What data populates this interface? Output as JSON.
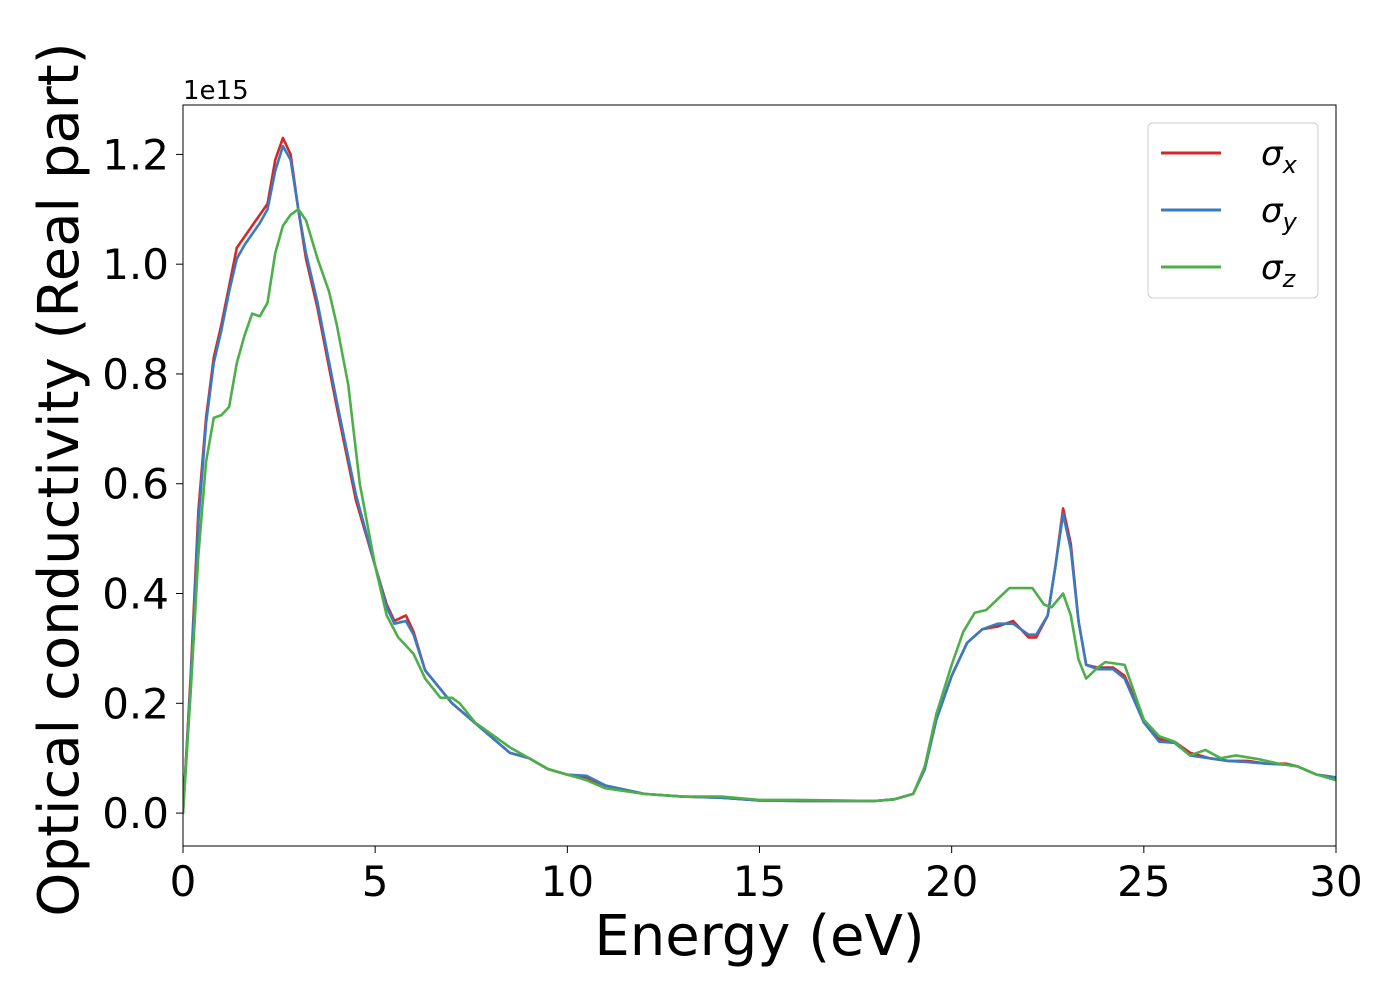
{
  "chart_data": {
    "type": "line",
    "xlabel": "Energy (eV)",
    "ylabel": "Optical conductivity (Real part)",
    "y_offset_label": "1e15",
    "xlim": [
      0,
      30
    ],
    "ylim": [
      -0.06,
      1.29
    ],
    "x_ticks": [
      0,
      5,
      10,
      15,
      20,
      25,
      30
    ],
    "x_tick_labels": [
      "0",
      "5",
      "10",
      "15",
      "20",
      "25",
      "30"
    ],
    "y_ticks": [
      0.0,
      0.2,
      0.4,
      0.6,
      0.8,
      1.0,
      1.2
    ],
    "y_tick_labels": [
      "0.0",
      "0.2",
      "0.4",
      "0.6",
      "0.8",
      "1.0",
      "1.2"
    ],
    "grid": false,
    "legend_position": "top-right",
    "series": [
      {
        "name": "σx",
        "legend_symbol": "σ",
        "legend_subscript": "x",
        "color": "#d62728",
        "points": [
          [
            0,
            0
          ],
          [
            0.2,
            0.25
          ],
          [
            0.4,
            0.55
          ],
          [
            0.6,
            0.72
          ],
          [
            0.8,
            0.83
          ],
          [
            1.0,
            0.89
          ],
          [
            1.2,
            0.96
          ],
          [
            1.4,
            1.03
          ],
          [
            1.6,
            1.05
          ],
          [
            1.8,
            1.07
          ],
          [
            2.0,
            1.09
          ],
          [
            2.2,
            1.11
          ],
          [
            2.4,
            1.19
          ],
          [
            2.6,
            1.23
          ],
          [
            2.8,
            1.2
          ],
          [
            3.0,
            1.1
          ],
          [
            3.2,
            1.01
          ],
          [
            3.5,
            0.92
          ],
          [
            4.0,
            0.74
          ],
          [
            4.5,
            0.57
          ],
          [
            5.0,
            0.45
          ],
          [
            5.3,
            0.38
          ],
          [
            5.5,
            0.35
          ],
          [
            5.8,
            0.36
          ],
          [
            6.0,
            0.33
          ],
          [
            6.3,
            0.26
          ],
          [
            7.0,
            0.2
          ],
          [
            8.0,
            0.14
          ],
          [
            8.5,
            0.11
          ],
          [
            9.0,
            0.1
          ],
          [
            9.5,
            0.08
          ],
          [
            10.0,
            0.07
          ],
          [
            10.5,
            0.065
          ],
          [
            11.0,
            0.05
          ],
          [
            12.0,
            0.035
          ],
          [
            13.0,
            0.03
          ],
          [
            14.0,
            0.028
          ],
          [
            15.0,
            0.023
          ],
          [
            16.0,
            0.022
          ],
          [
            17.0,
            0.022
          ],
          [
            18.0,
            0.022
          ],
          [
            18.5,
            0.025
          ],
          [
            19.0,
            0.035
          ],
          [
            19.3,
            0.08
          ],
          [
            19.6,
            0.17
          ],
          [
            20.0,
            0.25
          ],
          [
            20.4,
            0.31
          ],
          [
            20.8,
            0.335
          ],
          [
            21.2,
            0.34
          ],
          [
            21.6,
            0.35
          ],
          [
            22.0,
            0.32
          ],
          [
            22.2,
            0.32
          ],
          [
            22.5,
            0.36
          ],
          [
            22.7,
            0.45
          ],
          [
            22.9,
            0.555
          ],
          [
            23.1,
            0.49
          ],
          [
            23.3,
            0.35
          ],
          [
            23.5,
            0.27
          ],
          [
            23.8,
            0.265
          ],
          [
            24.2,
            0.265
          ],
          [
            24.5,
            0.25
          ],
          [
            25.0,
            0.17
          ],
          [
            25.4,
            0.135
          ],
          [
            25.8,
            0.13
          ],
          [
            26.2,
            0.11
          ],
          [
            26.7,
            0.1
          ],
          [
            27.2,
            0.095
          ],
          [
            27.7,
            0.095
          ],
          [
            28.2,
            0.09
          ],
          [
            28.7,
            0.09
          ],
          [
            29.0,
            0.085
          ],
          [
            29.5,
            0.07
          ],
          [
            30.0,
            0.065
          ]
        ]
      },
      {
        "name": "σy",
        "legend_symbol": "σ",
        "legend_subscript": "y",
        "color": "#3a7bbf",
        "points": [
          [
            0,
            0
          ],
          [
            0.2,
            0.24
          ],
          [
            0.4,
            0.53
          ],
          [
            0.6,
            0.71
          ],
          [
            0.8,
            0.82
          ],
          [
            1.0,
            0.88
          ],
          [
            1.2,
            0.95
          ],
          [
            1.4,
            1.01
          ],
          [
            1.6,
            1.035
          ],
          [
            1.8,
            1.055
          ],
          [
            2.0,
            1.075
          ],
          [
            2.2,
            1.1
          ],
          [
            2.4,
            1.17
          ],
          [
            2.6,
            1.215
          ],
          [
            2.8,
            1.19
          ],
          [
            3.0,
            1.1
          ],
          [
            3.2,
            1.02
          ],
          [
            3.5,
            0.93
          ],
          [
            4.0,
            0.75
          ],
          [
            4.5,
            0.58
          ],
          [
            5.0,
            0.45
          ],
          [
            5.3,
            0.375
          ],
          [
            5.5,
            0.345
          ],
          [
            5.8,
            0.35
          ],
          [
            6.0,
            0.325
          ],
          [
            6.3,
            0.26
          ],
          [
            7.0,
            0.2
          ],
          [
            8.0,
            0.14
          ],
          [
            8.5,
            0.11
          ],
          [
            9.0,
            0.1
          ],
          [
            9.5,
            0.08
          ],
          [
            10.0,
            0.07
          ],
          [
            10.5,
            0.068
          ],
          [
            11.0,
            0.05
          ],
          [
            12.0,
            0.035
          ],
          [
            13.0,
            0.03
          ],
          [
            14.0,
            0.028
          ],
          [
            15.0,
            0.023
          ],
          [
            16.0,
            0.022
          ],
          [
            17.0,
            0.022
          ],
          [
            18.0,
            0.022
          ],
          [
            18.5,
            0.025
          ],
          [
            19.0,
            0.035
          ],
          [
            19.3,
            0.08
          ],
          [
            19.6,
            0.17
          ],
          [
            20.0,
            0.25
          ],
          [
            20.4,
            0.31
          ],
          [
            20.8,
            0.335
          ],
          [
            21.2,
            0.345
          ],
          [
            21.6,
            0.345
          ],
          [
            22.0,
            0.325
          ],
          [
            22.2,
            0.325
          ],
          [
            22.5,
            0.36
          ],
          [
            22.7,
            0.45
          ],
          [
            22.9,
            0.545
          ],
          [
            23.1,
            0.48
          ],
          [
            23.3,
            0.35
          ],
          [
            23.5,
            0.27
          ],
          [
            23.8,
            0.262
          ],
          [
            24.2,
            0.262
          ],
          [
            24.5,
            0.245
          ],
          [
            25.0,
            0.165
          ],
          [
            25.4,
            0.13
          ],
          [
            25.8,
            0.128
          ],
          [
            26.2,
            0.105
          ],
          [
            26.7,
            0.1
          ],
          [
            27.2,
            0.095
          ],
          [
            27.7,
            0.093
          ],
          [
            28.2,
            0.09
          ],
          [
            28.7,
            0.088
          ],
          [
            29.0,
            0.085
          ],
          [
            29.5,
            0.07
          ],
          [
            30.0,
            0.065
          ]
        ]
      },
      {
        "name": "σz",
        "legend_symbol": "σ",
        "legend_subscript": "z",
        "color": "#4daf4a",
        "points": [
          [
            0,
            0
          ],
          [
            0.2,
            0.22
          ],
          [
            0.4,
            0.47
          ],
          [
            0.6,
            0.64
          ],
          [
            0.8,
            0.72
          ],
          [
            1.0,
            0.725
          ],
          [
            1.2,
            0.74
          ],
          [
            1.4,
            0.82
          ],
          [
            1.6,
            0.87
          ],
          [
            1.8,
            0.91
          ],
          [
            2.0,
            0.905
          ],
          [
            2.2,
            0.93
          ],
          [
            2.4,
            1.02
          ],
          [
            2.6,
            1.07
          ],
          [
            2.8,
            1.09
          ],
          [
            3.0,
            1.1
          ],
          [
            3.2,
            1.08
          ],
          [
            3.5,
            1.01
          ],
          [
            3.8,
            0.95
          ],
          [
            4.0,
            0.89
          ],
          [
            4.3,
            0.78
          ],
          [
            4.6,
            0.6
          ],
          [
            5.0,
            0.45
          ],
          [
            5.3,
            0.36
          ],
          [
            5.6,
            0.32
          ],
          [
            6.0,
            0.29
          ],
          [
            6.3,
            0.245
          ],
          [
            6.7,
            0.21
          ],
          [
            7.0,
            0.21
          ],
          [
            7.2,
            0.2
          ],
          [
            7.6,
            0.165
          ],
          [
            8.0,
            0.145
          ],
          [
            8.5,
            0.12
          ],
          [
            9.0,
            0.1
          ],
          [
            9.5,
            0.08
          ],
          [
            10.0,
            0.07
          ],
          [
            10.5,
            0.06
          ],
          [
            11.0,
            0.045
          ],
          [
            12.0,
            0.035
          ],
          [
            13.0,
            0.03
          ],
          [
            14.0,
            0.03
          ],
          [
            15.0,
            0.024
          ],
          [
            16.0,
            0.024
          ],
          [
            17.0,
            0.023
          ],
          [
            18.0,
            0.022
          ],
          [
            18.5,
            0.025
          ],
          [
            19.0,
            0.035
          ],
          [
            19.3,
            0.085
          ],
          [
            19.6,
            0.18
          ],
          [
            20.0,
            0.27
          ],
          [
            20.3,
            0.33
          ],
          [
            20.6,
            0.365
          ],
          [
            20.9,
            0.37
          ],
          [
            21.2,
            0.39
          ],
          [
            21.5,
            0.41
          ],
          [
            21.8,
            0.41
          ],
          [
            22.1,
            0.41
          ],
          [
            22.4,
            0.38
          ],
          [
            22.6,
            0.375
          ],
          [
            22.9,
            0.4
          ],
          [
            23.1,
            0.36
          ],
          [
            23.3,
            0.28
          ],
          [
            23.5,
            0.245
          ],
          [
            23.8,
            0.265
          ],
          [
            24.0,
            0.275
          ],
          [
            24.5,
            0.27
          ],
          [
            25.0,
            0.17
          ],
          [
            25.4,
            0.14
          ],
          [
            25.8,
            0.13
          ],
          [
            26.2,
            0.105
          ],
          [
            26.6,
            0.115
          ],
          [
            27.0,
            0.1
          ],
          [
            27.4,
            0.105
          ],
          [
            28.0,
            0.098
          ],
          [
            28.5,
            0.09
          ],
          [
            29.0,
            0.085
          ],
          [
            29.5,
            0.07
          ],
          [
            30.0,
            0.06
          ]
        ]
      }
    ]
  }
}
